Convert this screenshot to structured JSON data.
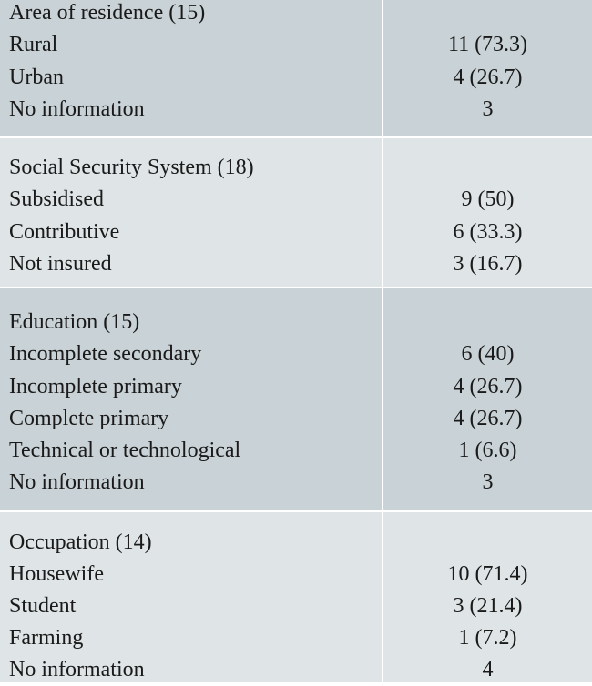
{
  "sections": [
    {
      "header": "Area of residence (15)",
      "rows": [
        {
          "label": "Rural",
          "value": "11 (73.3)"
        },
        {
          "label": "Urban",
          "value": "4 (26.7)"
        },
        {
          "label": "No information",
          "value": "3"
        }
      ]
    },
    {
      "header": "Social Security System (18)",
      "rows": [
        {
          "label": "Subsidised",
          "value": "9 (50)"
        },
        {
          "label": "Contributive",
          "value": "6 (33.3)"
        },
        {
          "label": "Not insured",
          "value": "3 (16.7)"
        }
      ]
    },
    {
      "header": "Education (15)",
      "rows": [
        {
          "label": "Incomplete secondary",
          "value": "6 (40)"
        },
        {
          "label": "Incomplete primary",
          "value": "4 (26.7)"
        },
        {
          "label": "Complete primary",
          "value": "4 (26.7)"
        },
        {
          "label": "Technical or technological",
          "value": "1 (6.6)"
        },
        {
          "label": "No information",
          "value": "3"
        }
      ]
    },
    {
      "header": "Occupation (14)",
      "rows": [
        {
          "label": "Housewife",
          "value": "10 (71.4)"
        },
        {
          "label": "Student",
          "value": "3 (21.4)"
        },
        {
          "label": "Farming",
          "value": "1 (7.2)"
        },
        {
          "label": "No information",
          "value": "4"
        }
      ]
    }
  ]
}
